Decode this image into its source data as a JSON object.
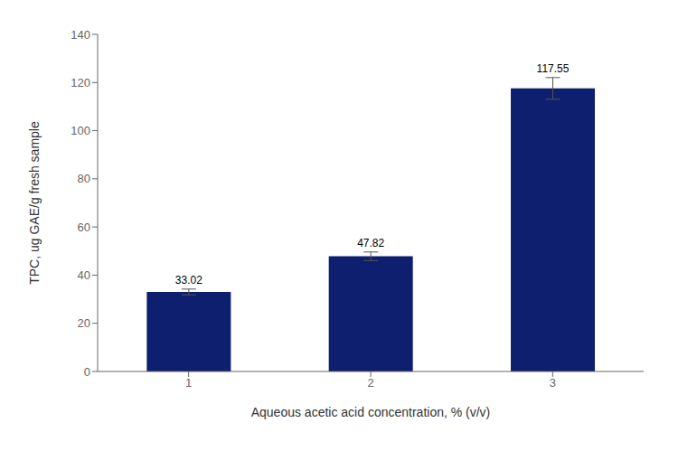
{
  "chart_data": {
    "type": "bar",
    "xlabel": "Aqueous acetic acid concentration, % (v/v)",
    "ylabel": "TPC, ug GAE/g fresh sample",
    "categories": [
      "1",
      "2",
      "3"
    ],
    "values": [
      33.02,
      47.82,
      117.55
    ],
    "errors": [
      1.2,
      1.8,
      4.5
    ],
    "color": "#0d1f6e",
    "ylim": [
      0,
      140
    ],
    "yticks": [
      0,
      20,
      40,
      60,
      80,
      100,
      120,
      140
    ],
    "grid": false,
    "data_labels": true
  }
}
